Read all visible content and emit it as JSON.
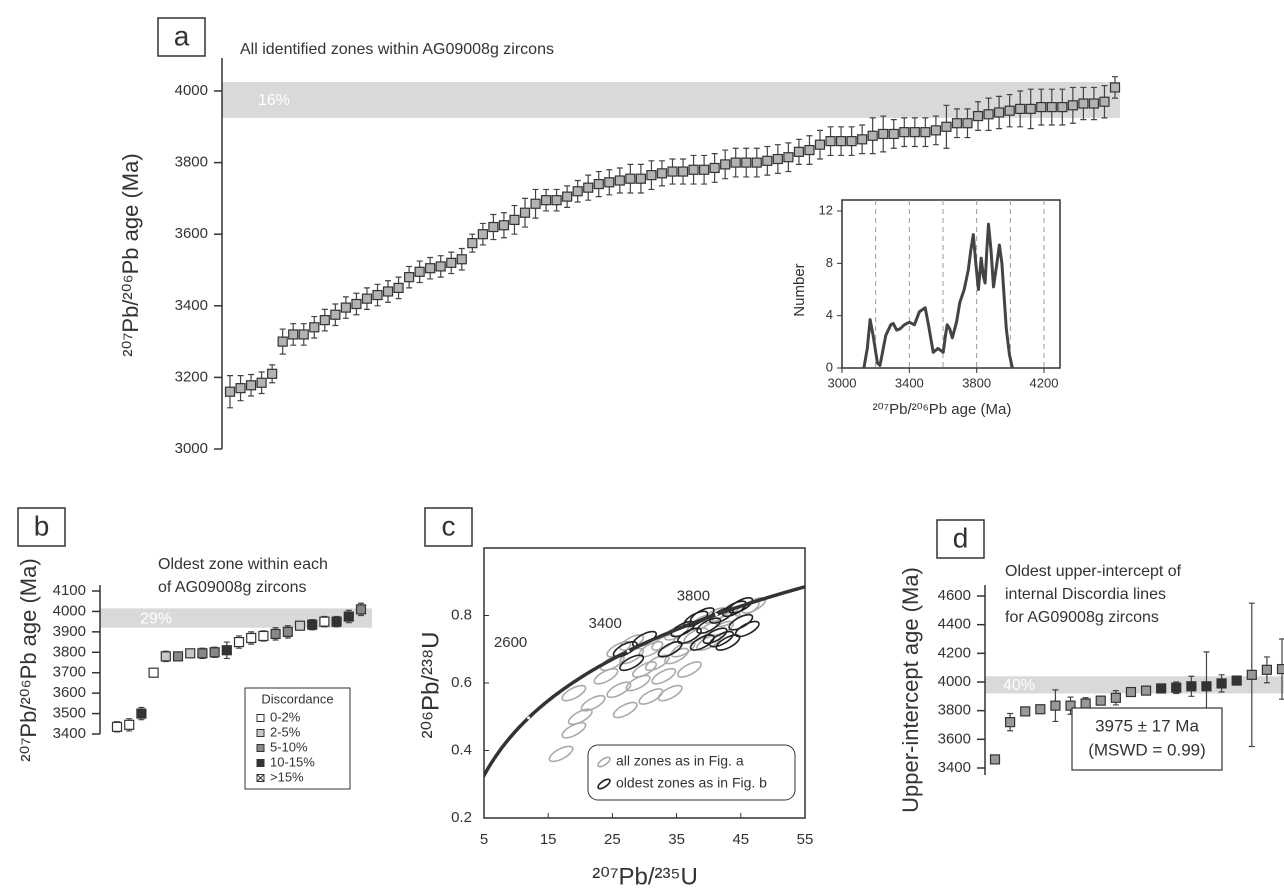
{
  "chart_data": [
    {
      "type": "errorbar",
      "label": "a",
      "title": [
        "All identified zones within AG09008g zircons"
      ],
      "ylabel": "²⁰⁷Pb/²⁰⁶Pb age (Ma)",
      "ylim": [
        3000,
        4000
      ],
      "yticks": [
        3000,
        3200,
        3400,
        3600,
        3800,
        4000
      ],
      "band": [
        3925,
        4025
      ],
      "band_label": "16%",
      "band_color": "#d9d9d9",
      "color": "#b3b3b3",
      "values": [
        3160,
        3170,
        3178,
        3185,
        3210,
        3300,
        3320,
        3320,
        3340,
        3360,
        3375,
        3395,
        3405,
        3420,
        3430,
        3440,
        3450,
        3480,
        3495,
        3505,
        3510,
        3520,
        3530,
        3575,
        3600,
        3620,
        3625,
        3640,
        3660,
        3685,
        3695,
        3695,
        3705,
        3720,
        3730,
        3740,
        3745,
        3750,
        3755,
        3755,
        3765,
        3770,
        3775,
        3775,
        3780,
        3780,
        3785,
        3795,
        3800,
        3800,
        3800,
        3805,
        3810,
        3815,
        3830,
        3835,
        3850,
        3860,
        3860,
        3860,
        3865,
        3875,
        3880,
        3880,
        3885,
        3885,
        3885,
        3890,
        3900,
        3910,
        3910,
        3930,
        3935,
        3940,
        3945,
        3950,
        3950,
        3955,
        3955,
        3955,
        3960,
        3965,
        3965,
        3970,
        4010
      ],
      "errors": [
        45,
        35,
        30,
        30,
        25,
        35,
        30,
        30,
        30,
        30,
        30,
        30,
        30,
        30,
        30,
        30,
        30,
        30,
        30,
        30,
        30,
        30,
        30,
        25,
        30,
        35,
        35,
        40,
        40,
        40,
        30,
        30,
        30,
        30,
        35,
        35,
        35,
        35,
        40,
        40,
        40,
        35,
        35,
        35,
        40,
        40,
        40,
        40,
        40,
        40,
        40,
        40,
        40,
        40,
        35,
        40,
        40,
        40,
        40,
        40,
        40,
        50,
        50,
        40,
        40,
        40,
        40,
        40,
        60,
        40,
        40,
        40,
        45,
        45,
        45,
        50,
        55,
        50,
        50,
        50,
        50,
        45,
        45,
        45,
        30
      ]
    },
    {
      "type": "line",
      "xlabel": "²⁰⁷Pb/²⁰⁶Pb age (Ma)",
      "ylabel": "Number",
      "xlim": [
        3000,
        4200
      ],
      "xticks": [
        3000,
        3400,
        3800,
        4200
      ],
      "ylim": [
        0,
        12
      ],
      "yticks": [
        0,
        4,
        8,
        12
      ],
      "vlines": [
        3200,
        3400,
        3600,
        3800,
        4000,
        4200
      ],
      "color": "#444444",
      "x": [
        3130,
        3150,
        3167,
        3185,
        3210,
        3226,
        3260,
        3290,
        3304,
        3325,
        3345,
        3370,
        3400,
        3430,
        3460,
        3494,
        3515,
        3542,
        3570,
        3601,
        3615,
        3625,
        3640,
        3655,
        3680,
        3700,
        3726,
        3750,
        3765,
        3780,
        3795,
        3810,
        3827,
        3840,
        3850,
        3860,
        3870,
        3885,
        3900,
        3920,
        3935,
        3950,
        3976,
        3995,
        4012
      ],
      "values": [
        0,
        1.5,
        3.7,
        2.5,
        0.4,
        0.2,
        2.5,
        3.3,
        3.4,
        2.9,
        3,
        3.3,
        3.5,
        3.3,
        4.3,
        4.6,
        3.2,
        1.2,
        1.5,
        1.2,
        2.5,
        3.3,
        3,
        2.3,
        3.5,
        5,
        6,
        7.5,
        9,
        10.2,
        8,
        6,
        8.4,
        7,
        6.5,
        9,
        11,
        9,
        6.2,
        8,
        9.4,
        8,
        3,
        1,
        0
      ]
    },
    {
      "type": "errorbar",
      "label": "b",
      "title": [
        "Oldest zone within each",
        "of AG09008g zircons"
      ],
      "ylabel": "²⁰⁷Pb/²⁰⁶Pb age (Ma)",
      "ylim": [
        3400,
        4100
      ],
      "yticks": [
        3400,
        3500,
        3600,
        3700,
        3800,
        3900,
        4000,
        4100
      ],
      "band": [
        3920,
        4015
      ],
      "band_label": "29%",
      "band_color": "#d9d9d9",
      "values": [
        3435,
        3445,
        3500,
        3700,
        3780,
        3780,
        3795,
        3795,
        3800,
        3810,
        3850,
        3870,
        3880,
        3890,
        3900,
        3930,
        3935,
        3950,
        3950,
        3975,
        4010
      ],
      "errors": [
        25,
        30,
        30,
        20,
        25,
        20,
        20,
        25,
        25,
        40,
        30,
        30,
        25,
        30,
        30,
        20,
        25,
        25,
        25,
        30,
        30
      ],
      "point_classes": [
        "0-2%",
        "0-2%",
        "10-15%",
        "0-2%",
        "2-5%",
        "5-10%",
        "2-5%",
        "5-10%",
        "5-10%",
        "10-15%",
        "0-2%",
        "0-2%",
        "0-2%",
        "5-10%",
        "5-10%",
        "2-5%",
        "10-15%",
        "0-2%",
        "10-15%",
        "10-15%",
        "5-10%"
      ],
      "legend_title": "Discordance",
      "legend": [
        {
          "label": "0-2%",
          "color": "#ffffff"
        },
        {
          "label": "2-5%",
          "color": "#c8c8c8"
        },
        {
          "label": "5-10%",
          "color": "#888888"
        },
        {
          "label": "10-15%",
          "color": "#333333"
        },
        {
          "label": ">15%",
          "color": "#ffffff",
          "marker": "cross"
        }
      ]
    },
    {
      "type": "ellipse",
      "label": "c",
      "xlabel": "²⁰⁷Pb/²³⁵U",
      "ylabel": "²⁰⁶Pb/²³⁸U",
      "xlim": [
        5,
        55
      ],
      "xticks": [
        5,
        15,
        25,
        35,
        45,
        55
      ],
      "ylim": [
        0.2,
        1.0
      ],
      "yticks": [
        0.2,
        0.4,
        0.6,
        0.8
      ],
      "concordia_ages": [
        2600,
        3400,
        3800
      ],
      "series": [
        {
          "name": "all zones as in Fig. a",
          "color": "#aaaaaa",
          "x": [
            17,
            19,
            20,
            19,
            22,
            24,
            25,
            26,
            27,
            28,
            29,
            30,
            31,
            31,
            32,
            33,
            33,
            34,
            35,
            35,
            36,
            37,
            38,
            39,
            40,
            41,
            42,
            43,
            44,
            46,
            47,
            28,
            26
          ],
          "values": [
            0.39,
            0.46,
            0.5,
            0.57,
            0.54,
            0.62,
            0.66,
            0.58,
            0.52,
            0.68,
            0.6,
            0.64,
            0.56,
            0.7,
            0.66,
            0.62,
            0.72,
            0.57,
            0.68,
            0.75,
            0.7,
            0.64,
            0.74,
            0.78,
            0.72,
            0.8,
            0.76,
            0.79,
            0.82,
            0.82,
            0.83,
            0.72,
            0.7
          ]
        },
        {
          "name": "oldest zones as in Fig. b",
          "color": "#222222",
          "x": [
            27,
            28,
            30,
            34,
            36,
            37,
            38,
            39,
            40,
            41,
            42,
            43,
            44,
            45,
            45,
            46,
            42,
            39
          ],
          "values": [
            0.7,
            0.66,
            0.73,
            0.7,
            0.76,
            0.74,
            0.79,
            0.72,
            0.77,
            0.74,
            0.8,
            0.72,
            0.82,
            0.78,
            0.83,
            0.76,
            0.73,
            0.8
          ]
        }
      ]
    },
    {
      "type": "errorbar",
      "label": "d",
      "title": [
        "Oldest upper-intercept of",
        "internal Discordia lines",
        "for AG09008g zircons"
      ],
      "ylabel": "Upper-intercept age (Ma)",
      "ylim": [
        3400,
        4600
      ],
      "yticks": [
        3400,
        3600,
        3800,
        4000,
        4200,
        4400,
        4600
      ],
      "band": [
        3920,
        4040
      ],
      "band_label": "40%",
      "band_color": "#d9d9d9",
      "values": [
        3460,
        3720,
        3795,
        3810,
        3835,
        3835,
        3850,
        3870,
        3890,
        3930,
        3940,
        3955,
        3960,
        3970,
        3970,
        3990,
        4010,
        4050,
        4085,
        4090
      ],
      "errors": [
        30,
        60,
        25,
        20,
        110,
        60,
        40,
        30,
        50,
        30,
        25,
        30,
        40,
        70,
        240,
        60,
        30,
        500,
        90,
        210
      ],
      "point_colors": [
        "#999999",
        "#999999",
        "#999999",
        "#999999",
        "#999999",
        "#999999",
        "#999999",
        "#999999",
        "#999999",
        "#999999",
        "#999999",
        "#333333",
        "#333333",
        "#333333",
        "#333333",
        "#333333",
        "#333333",
        "#999999",
        "#999999",
        "#999999"
      ],
      "annotation": [
        "3975 ± 17 Ma",
        "(MSWD = 0.99)"
      ]
    }
  ]
}
